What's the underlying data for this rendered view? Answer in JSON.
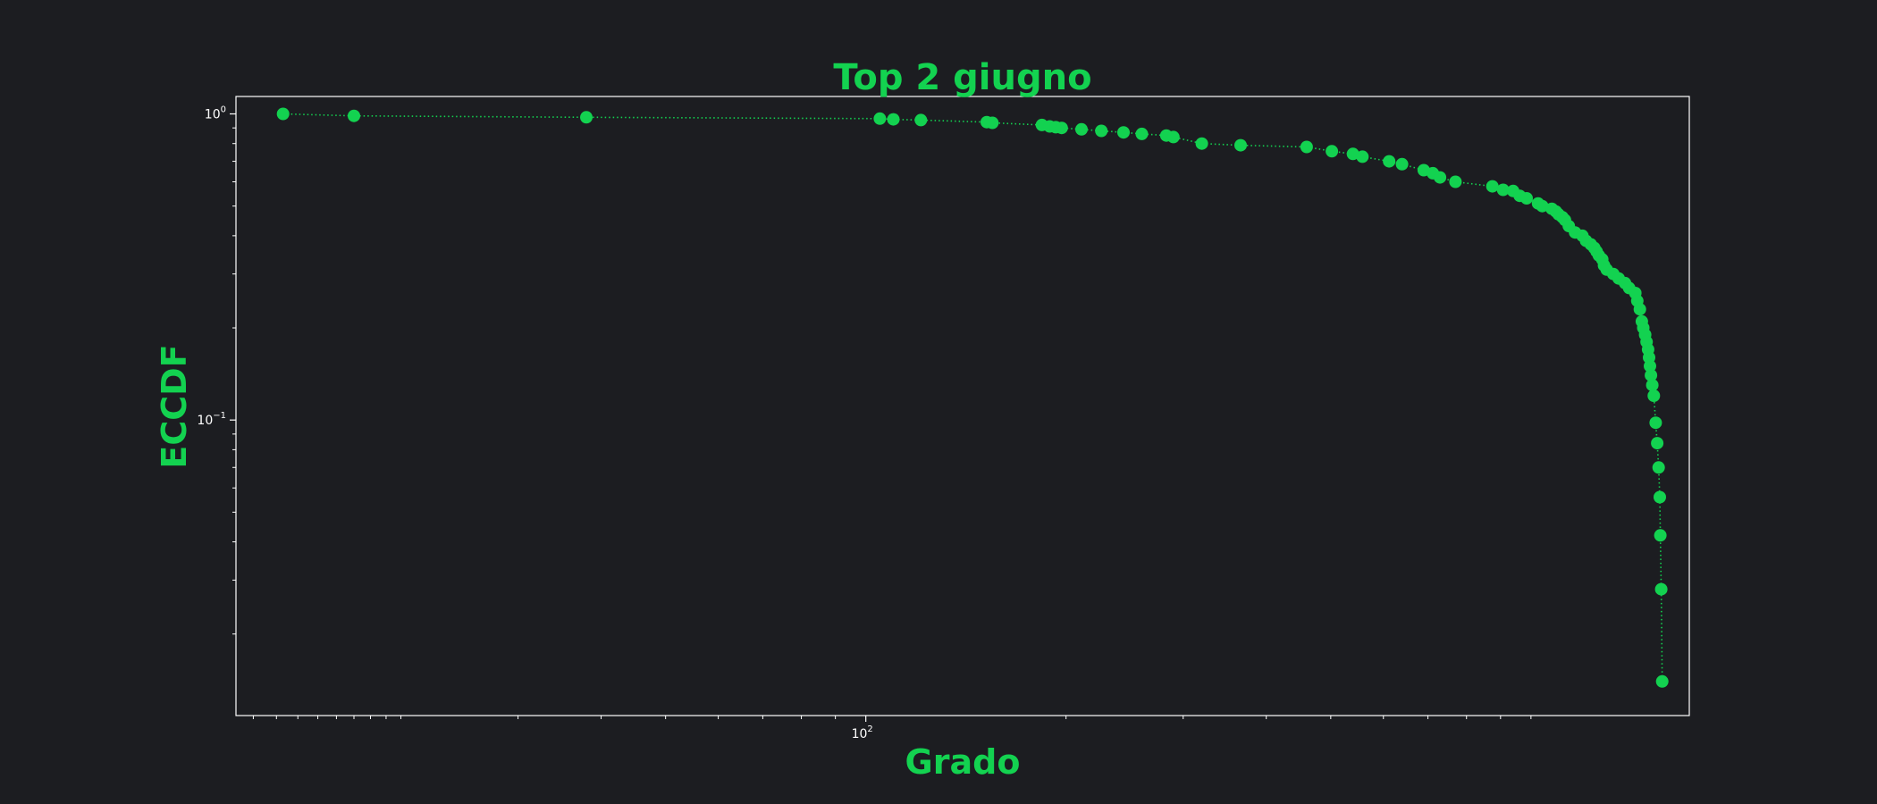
{
  "chart_data": {
    "type": "scatter",
    "title": "Top 2 giugno",
    "xlabel": "Grado",
    "ylabel": "ECCDF",
    "x_scale": "log",
    "y_scale": "log",
    "xlim": [
      11.3,
      1730
    ],
    "ylim": [
      0.01083,
      1.14
    ],
    "x_ticks": [
      {
        "value": 100,
        "label": "10",
        "exp": "2"
      }
    ],
    "x_minor_ticks": [
      12,
      13,
      14,
      15,
      16,
      17,
      18,
      19,
      20,
      30,
      40,
      50,
      60,
      70,
      80,
      90,
      200,
      300,
      400,
      500,
      600,
      700,
      800,
      900,
      1000
    ],
    "y_ticks": [
      {
        "value": 1,
        "label": "10",
        "exp": "0"
      },
      {
        "value": 0.1,
        "label": "10",
        "exp": "−1"
      }
    ],
    "y_minor_ticks": [
      0.02,
      0.03,
      0.04,
      0.05,
      0.06,
      0.07,
      0.08,
      0.09,
      0.2,
      0.3,
      0.4,
      0.5,
      0.6,
      0.7,
      0.8,
      0.9
    ],
    "grid": false,
    "colors": {
      "background": "#1c1d21",
      "plot_background": "#1c1d21",
      "accent": "#13d250",
      "axis": "#ffffff",
      "tick_label": "#ffffff"
    },
    "series": [
      {
        "marker": "circle",
        "line": "dotted",
        "x": [
          13.3,
          17.0,
          38.0,
          105,
          110,
          121,
          152,
          155,
          184,
          189,
          193,
          197,
          211,
          226,
          244,
          260,
          283,
          290,
          320,
          366,
          460,
          502,
          540,
          558,
          612,
          640,
          690,
          712,
          730,
          770,
          875,
          908,
          940,
          962,
          985,
          1025,
          1040,
          1075,
          1090,
          1100,
          1115,
          1125,
          1140,
          1165,
          1195,
          1210,
          1230,
          1245,
          1255,
          1265,
          1280,
          1288,
          1300,
          1330,
          1355,
          1385,
          1405,
          1435,
          1445,
          1458,
          1468,
          1475,
          1485,
          1492,
          1500,
          1505,
          1510,
          1515,
          1522,
          1530,
          1540,
          1548,
          1556,
          1562,
          1565,
          1570,
          1575
        ],
        "y": [
          1.0,
          0.985,
          0.975,
          0.965,
          0.96,
          0.955,
          0.94,
          0.935,
          0.92,
          0.91,
          0.905,
          0.9,
          0.89,
          0.88,
          0.87,
          0.86,
          0.85,
          0.84,
          0.8,
          0.79,
          0.78,
          0.755,
          0.74,
          0.725,
          0.7,
          0.685,
          0.655,
          0.64,
          0.62,
          0.6,
          0.58,
          0.565,
          0.56,
          0.54,
          0.53,
          0.51,
          0.5,
          0.49,
          0.48,
          0.47,
          0.46,
          0.45,
          0.43,
          0.41,
          0.4,
          0.385,
          0.375,
          0.365,
          0.355,
          0.345,
          0.335,
          0.32,
          0.31,
          0.3,
          0.29,
          0.28,
          0.27,
          0.26,
          0.245,
          0.23,
          0.21,
          0.2,
          0.19,
          0.18,
          0.17,
          0.16,
          0.15,
          0.14,
          0.13,
          0.12,
          0.098,
          0.084,
          0.07,
          0.056,
          0.042,
          0.028,
          0.014
        ]
      }
    ]
  }
}
